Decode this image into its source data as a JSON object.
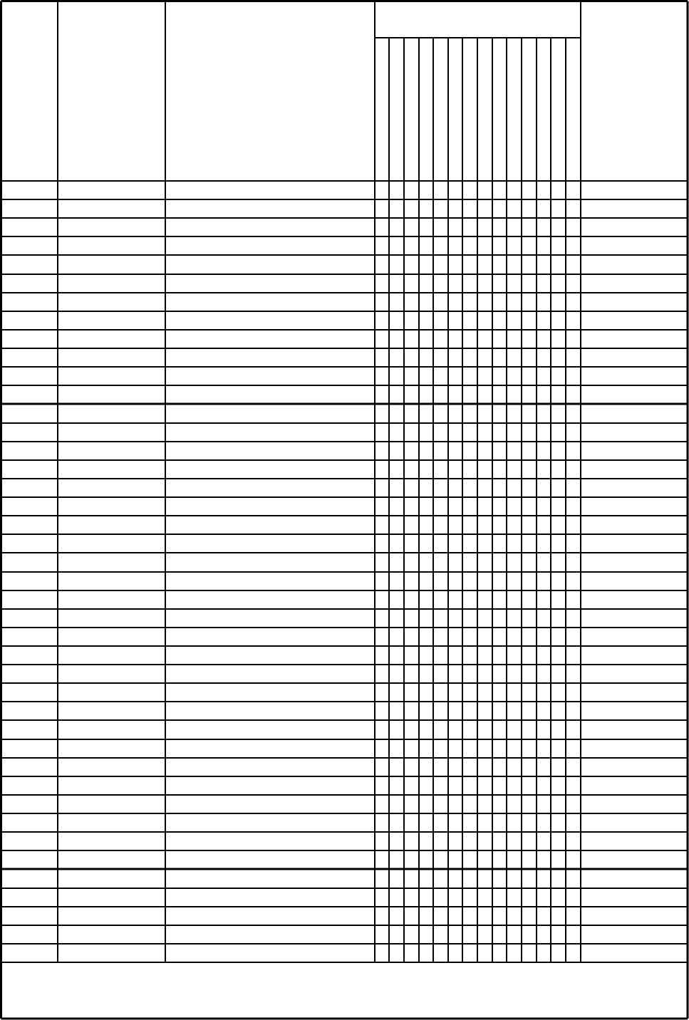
{
  "form": {
    "line_color": "#000000",
    "background_color": "#ffffff",
    "headers": [
      "",
      "",
      "",
      "",
      ""
    ],
    "rows": [],
    "footer_note": ""
  }
}
